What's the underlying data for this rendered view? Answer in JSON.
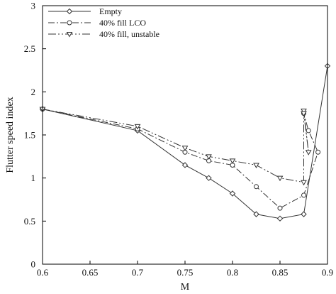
{
  "chart_data": {
    "type": "line",
    "title": "",
    "xlabel": "M",
    "ylabel": "Flutter speed index",
    "xlim": [
      0.6,
      0.9
    ],
    "ylim": [
      0,
      3
    ],
    "xticks": [
      "0.6",
      "0.65",
      "0.7",
      "0.75",
      "0.8",
      "0.85",
      "0.9"
    ],
    "yticks": [
      "0",
      "0.5",
      "1",
      "1.5",
      "2",
      "2.5",
      "3"
    ],
    "grid": false,
    "legend_position": "top-left",
    "series": [
      {
        "name": "Empty",
        "style": "solid",
        "marker": "diamond",
        "x": [
          0.6,
          0.7,
          0.75,
          0.775,
          0.8,
          0.825,
          0.85,
          0.875,
          0.9
        ],
        "y": [
          1.8,
          1.55,
          1.15,
          1.0,
          0.82,
          0.58,
          0.53,
          0.58,
          2.3
        ]
      },
      {
        "name": "40% fill LCO",
        "style": "dashdot",
        "marker": "circle",
        "x": [
          0.6,
          0.7,
          0.75,
          0.775,
          0.8,
          0.825,
          0.85,
          0.875,
          0.89,
          0.88,
          0.875
        ],
        "y": [
          1.8,
          1.57,
          1.3,
          1.2,
          1.15,
          0.9,
          0.65,
          0.8,
          1.3,
          1.55,
          1.75
        ]
      },
      {
        "name": "40% fill, unstable",
        "style": "dashdotdot",
        "marker": "triangle-down",
        "x": [
          0.6,
          0.7,
          0.75,
          0.775,
          0.8,
          0.825,
          0.85,
          0.875,
          0.875,
          0.88,
          0.875
        ],
        "y": [
          1.8,
          1.6,
          1.35,
          1.25,
          1.2,
          1.15,
          1.0,
          0.95,
          1.78,
          1.3,
          1.75
        ]
      }
    ]
  }
}
